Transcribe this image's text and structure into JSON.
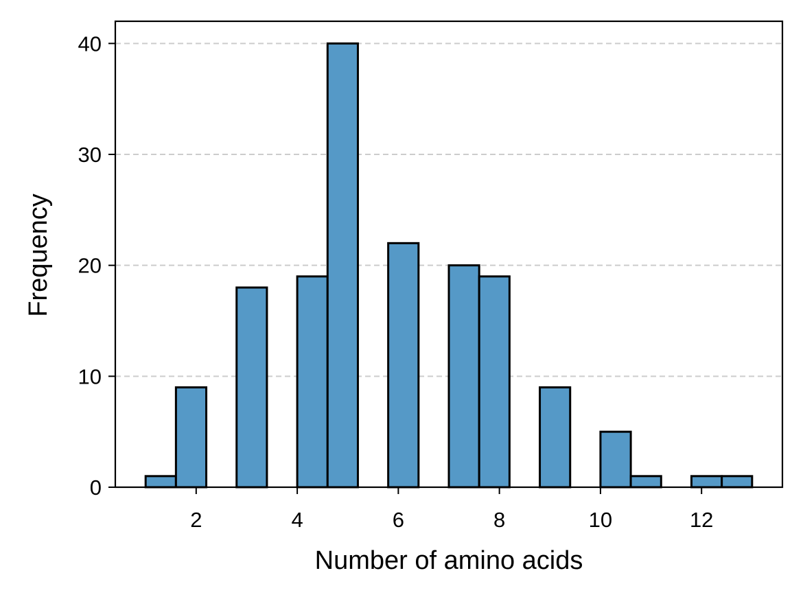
{
  "chart_data": {
    "type": "bar",
    "title": "",
    "xlabel": "Number of amino acids",
    "ylabel": "Frequency",
    "xlim": [
      0.4,
      13.6
    ],
    "ylim": [
      0,
      42
    ],
    "xticks": [
      2,
      4,
      6,
      8,
      10,
      12
    ],
    "yticks": [
      0,
      10,
      20,
      30,
      40
    ],
    "grid": "y-dashed",
    "bin_width": 0.6,
    "bins": [
      {
        "start": 1.0,
        "value": 1
      },
      {
        "start": 1.6,
        "value": 9
      },
      {
        "start": 2.2,
        "value": 0
      },
      {
        "start": 2.8,
        "value": 18
      },
      {
        "start": 3.4,
        "value": 0
      },
      {
        "start": 4.0,
        "value": 19
      },
      {
        "start": 4.6,
        "value": 40
      },
      {
        "start": 5.2,
        "value": 0
      },
      {
        "start": 5.8,
        "value": 22
      },
      {
        "start": 6.4,
        "value": 0
      },
      {
        "start": 7.0,
        "value": 20
      },
      {
        "start": 7.6,
        "value": 19
      },
      {
        "start": 8.2,
        "value": 0
      },
      {
        "start": 8.8,
        "value": 9
      },
      {
        "start": 9.4,
        "value": 0
      },
      {
        "start": 10.0,
        "value": 5
      },
      {
        "start": 10.6,
        "value": 1
      },
      {
        "start": 11.2,
        "value": 0
      },
      {
        "start": 11.8,
        "value": 1
      },
      {
        "start": 12.4,
        "value": 1
      }
    ],
    "colors": {
      "bar_fill": "#5599c7",
      "bar_edge": "#000000",
      "grid": "#cccccc"
    }
  }
}
